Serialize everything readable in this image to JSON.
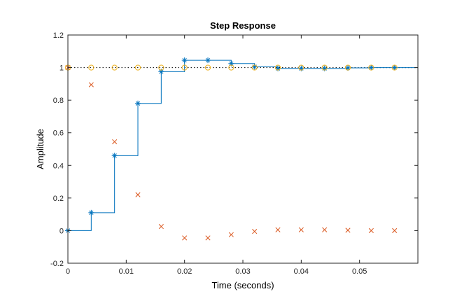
{
  "chart_data": {
    "type": "line",
    "title": "Step Response",
    "xlabel": "Time (seconds)",
    "ylabel": "Amplitude",
    "xlim": [
      0,
      0.06
    ],
    "ylim": [
      -0.2,
      1.2
    ],
    "xticks": [
      0,
      0.01,
      0.02,
      0.03,
      0.04,
      0.05
    ],
    "xtick_labels": [
      "0",
      "0.01",
      "0.02",
      "0.03",
      "0.04",
      "0.05"
    ],
    "yticks": [
      -0.2,
      0,
      0.2,
      0.4,
      0.6,
      0.8,
      1,
      1.2
    ],
    "ytick_labels": [
      "-0.2",
      "0",
      "0.2",
      "0.4",
      "0.6",
      "0.8",
      "1",
      "1.2"
    ],
    "grid": false,
    "reference_line": {
      "y": 1,
      "style": "dotted",
      "color": "#000000"
    },
    "series": [
      {
        "style": "stairs-with-star-markers",
        "color": "#0072BD",
        "x": [
          0,
          0.004,
          0.008,
          0.012,
          0.016,
          0.02,
          0.024,
          0.028,
          0.032,
          0.036,
          0.04,
          0.044,
          0.048,
          0.052,
          0.056
        ],
        "y": [
          0,
          0.11,
          0.46,
          0.78,
          0.975,
          1.045,
          1.045,
          1.025,
          1.005,
          0.995,
          0.995,
          0.995,
          0.998,
          1.0,
          1.0
        ],
        "stairs_end_x": 0.06
      },
      {
        "style": "x-markers",
        "color": "#D95319",
        "x": [
          0,
          0.004,
          0.008,
          0.012,
          0.016,
          0.02,
          0.024,
          0.028,
          0.032,
          0.036,
          0.04,
          0.044,
          0.048,
          0.052,
          0.056
        ],
        "y": [
          1.0,
          0.895,
          0.545,
          0.22,
          0.025,
          -0.045,
          -0.045,
          -0.025,
          -0.005,
          0.005,
          0.005,
          0.005,
          0.002,
          0.0,
          0.0
        ]
      },
      {
        "style": "circle-markers",
        "color": "#EDB120",
        "x": [
          0,
          0.004,
          0.008,
          0.012,
          0.016,
          0.02,
          0.024,
          0.028,
          0.032,
          0.036,
          0.04,
          0.044,
          0.048,
          0.052,
          0.056
        ],
        "y": [
          1,
          1,
          1,
          1,
          1,
          1,
          1,
          1,
          1,
          1,
          1,
          1,
          1,
          1,
          1
        ]
      }
    ]
  }
}
